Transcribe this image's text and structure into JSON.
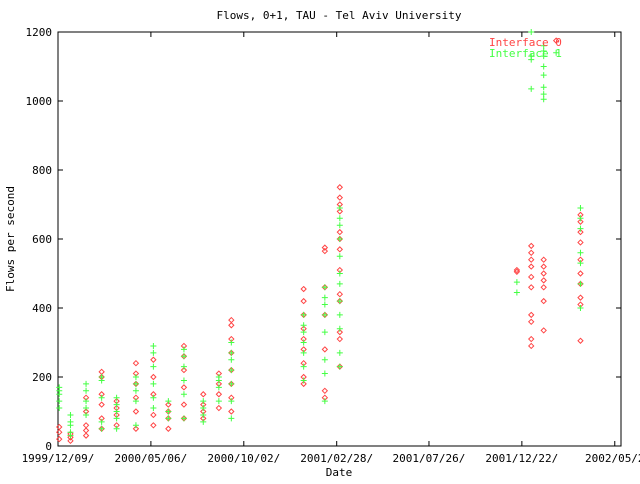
{
  "chart_data": {
    "type": "scatter",
    "title": "Flows, 0+1, TAU - Tel Aviv University",
    "xlabel": "Date",
    "ylabel": "Flows per second",
    "xlim": [
      "1999-12-09",
      "2002-05-30"
    ],
    "ylim": [
      0,
      1200
    ],
    "y_ticks": [
      0,
      200,
      400,
      600,
      800,
      1000,
      1200
    ],
    "x_ticks": [
      {
        "date": "1999-12-09",
        "label": "1999/12/09/"
      },
      {
        "date": "2000-05-06",
        "label": "2000/05/06/"
      },
      {
        "date": "2000-10-02",
        "label": "2000/10/02/"
      },
      {
        "date": "2001-02-28",
        "label": "2001/02/28/"
      },
      {
        "date": "2001-07-26",
        "label": "2001/07/26/"
      },
      {
        "date": "2001-12-22",
        "label": "2001/12/22/"
      },
      {
        "date": "2002-05-20",
        "label": "2002/05/2"
      }
    ],
    "legend_position": "top-right",
    "grid": false,
    "series": [
      {
        "name": "Interface 0",
        "color": "#ff4444",
        "marker": "diamond",
        "points": [
          [
            "1999-12-11",
            20
          ],
          [
            "1999-12-11",
            40
          ],
          [
            "1999-12-11",
            55
          ],
          [
            "1999-12-29",
            15
          ],
          [
            "1999-12-29",
            25
          ],
          [
            "1999-12-29",
            35
          ],
          [
            "2000-01-23",
            30
          ],
          [
            "2000-01-23",
            45
          ],
          [
            "2000-01-23",
            60
          ],
          [
            "2000-01-23",
            100
          ],
          [
            "2000-01-23",
            140
          ],
          [
            "2000-02-17",
            50
          ],
          [
            "2000-02-17",
            80
          ],
          [
            "2000-02-17",
            120
          ],
          [
            "2000-02-17",
            150
          ],
          [
            "2000-02-17",
            200
          ],
          [
            "2000-02-17",
            215
          ],
          [
            "2000-03-12",
            60
          ],
          [
            "2000-03-12",
            90
          ],
          [
            "2000-03-12",
            110
          ],
          [
            "2000-03-12",
            130
          ],
          [
            "2000-04-12",
            50
          ],
          [
            "2000-04-12",
            100
          ],
          [
            "2000-04-12",
            140
          ],
          [
            "2000-04-12",
            180
          ],
          [
            "2000-04-12",
            210
          ],
          [
            "2000-04-12",
            240
          ],
          [
            "2000-05-10",
            60
          ],
          [
            "2000-05-10",
            90
          ],
          [
            "2000-05-10",
            150
          ],
          [
            "2000-05-10",
            200
          ],
          [
            "2000-05-10",
            250
          ],
          [
            "2000-06-03",
            50
          ],
          [
            "2000-06-03",
            80
          ],
          [
            "2000-06-03",
            100
          ],
          [
            "2000-06-03",
            120
          ],
          [
            "2000-06-28",
            80
          ],
          [
            "2000-06-28",
            120
          ],
          [
            "2000-06-28",
            170
          ],
          [
            "2000-06-28",
            220
          ],
          [
            "2000-06-28",
            260
          ],
          [
            "2000-06-28",
            290
          ],
          [
            "2000-07-29",
            80
          ],
          [
            "2000-07-29",
            100
          ],
          [
            "2000-07-29",
            120
          ],
          [
            "2000-07-29",
            150
          ],
          [
            "2000-08-23",
            110
          ],
          [
            "2000-08-23",
            150
          ],
          [
            "2000-08-23",
            180
          ],
          [
            "2000-08-23",
            210
          ],
          [
            "2000-09-12",
            100
          ],
          [
            "2000-09-12",
            140
          ],
          [
            "2000-09-12",
            180
          ],
          [
            "2000-09-12",
            220
          ],
          [
            "2000-09-12",
            270
          ],
          [
            "2000-09-12",
            310
          ],
          [
            "2000-09-12",
            350
          ],
          [
            "2000-09-12",
            365
          ],
          [
            "2001-01-06",
            180
          ],
          [
            "2001-01-06",
            200
          ],
          [
            "2001-01-06",
            240
          ],
          [
            "2001-01-06",
            280
          ],
          [
            "2001-01-06",
            310
          ],
          [
            "2001-01-06",
            340
          ],
          [
            "2001-01-06",
            380
          ],
          [
            "2001-01-06",
            420
          ],
          [
            "2001-01-06",
            455
          ],
          [
            "2001-02-09",
            140
          ],
          [
            "2001-02-09",
            160
          ],
          [
            "2001-02-09",
            280
          ],
          [
            "2001-02-09",
            380
          ],
          [
            "2001-02-09",
            460
          ],
          [
            "2001-02-09",
            565
          ],
          [
            "2001-02-09",
            575
          ],
          [
            "2001-03-05",
            230
          ],
          [
            "2001-03-05",
            310
          ],
          [
            "2001-03-05",
            330
          ],
          [
            "2001-03-05",
            420
          ],
          [
            "2001-03-05",
            440
          ],
          [
            "2001-03-05",
            510
          ],
          [
            "2001-03-05",
            570
          ],
          [
            "2001-03-05",
            600
          ],
          [
            "2001-03-05",
            620
          ],
          [
            "2001-03-05",
            680
          ],
          [
            "2001-03-05",
            700
          ],
          [
            "2001-03-05",
            720
          ],
          [
            "2001-03-05",
            750
          ],
          [
            "2001-12-14",
            505
          ],
          [
            "2001-12-14",
            510
          ],
          [
            "2002-01-06",
            290
          ],
          [
            "2002-01-06",
            310
          ],
          [
            "2002-01-06",
            360
          ],
          [
            "2002-01-06",
            380
          ],
          [
            "2002-01-06",
            460
          ],
          [
            "2002-01-06",
            490
          ],
          [
            "2002-01-06",
            520
          ],
          [
            "2002-01-06",
            540
          ],
          [
            "2002-01-06",
            560
          ],
          [
            "2002-01-06",
            580
          ],
          [
            "2002-01-26",
            335
          ],
          [
            "2002-01-26",
            420
          ],
          [
            "2002-01-26",
            460
          ],
          [
            "2002-01-26",
            480
          ],
          [
            "2002-01-26",
            500
          ],
          [
            "2002-01-26",
            520
          ],
          [
            "2002-01-26",
            540
          ],
          [
            "2002-02-15",
            1175
          ],
          [
            "2002-03-26",
            305
          ],
          [
            "2002-03-26",
            410
          ],
          [
            "2002-03-26",
            430
          ],
          [
            "2002-03-26",
            470
          ],
          [
            "2002-03-26",
            500
          ],
          [
            "2002-03-26",
            540
          ],
          [
            "2002-03-26",
            590
          ],
          [
            "2002-03-26",
            620
          ],
          [
            "2002-03-26",
            650
          ],
          [
            "2002-03-26",
            670
          ]
        ]
      },
      {
        "name": "Interface 1",
        "color": "#44ff44",
        "marker": "plus",
        "points": [
          [
            "1999-12-11",
            110
          ],
          [
            "1999-12-11",
            130
          ],
          [
            "1999-12-11",
            150
          ],
          [
            "1999-12-11",
            160
          ],
          [
            "1999-12-11",
            170
          ],
          [
            "1999-12-29",
            30
          ],
          [
            "1999-12-29",
            40
          ],
          [
            "1999-12-29",
            60
          ],
          [
            "1999-12-29",
            70
          ],
          [
            "1999-12-29",
            90
          ],
          [
            "2000-01-23",
            90
          ],
          [
            "2000-01-23",
            110
          ],
          [
            "2000-01-23",
            130
          ],
          [
            "2000-01-23",
            160
          ],
          [
            "2000-01-23",
            180
          ],
          [
            "2000-02-17",
            50
          ],
          [
            "2000-02-17",
            70
          ],
          [
            "2000-02-17",
            140
          ],
          [
            "2000-02-17",
            190
          ],
          [
            "2000-02-17",
            200
          ],
          [
            "2000-03-12",
            50
          ],
          [
            "2000-03-12",
            80
          ],
          [
            "2000-03-12",
            100
          ],
          [
            "2000-03-12",
            120
          ],
          [
            "2000-03-12",
            140
          ],
          [
            "2000-04-12",
            60
          ],
          [
            "2000-04-12",
            130
          ],
          [
            "2000-04-12",
            160
          ],
          [
            "2000-04-12",
            180
          ],
          [
            "2000-04-12",
            200
          ],
          [
            "2000-05-10",
            110
          ],
          [
            "2000-05-10",
            140
          ],
          [
            "2000-05-10",
            180
          ],
          [
            "2000-05-10",
            230
          ],
          [
            "2000-05-10",
            270
          ],
          [
            "2000-05-10",
            290
          ],
          [
            "2000-06-03",
            80
          ],
          [
            "2000-06-03",
            100
          ],
          [
            "2000-06-03",
            130
          ],
          [
            "2000-06-28",
            80
          ],
          [
            "2000-06-28",
            150
          ],
          [
            "2000-06-28",
            190
          ],
          [
            "2000-06-28",
            230
          ],
          [
            "2000-06-28",
            260
          ],
          [
            "2000-06-28",
            280
          ],
          [
            "2000-07-29",
            70
          ],
          [
            "2000-07-29",
            90
          ],
          [
            "2000-07-29",
            110
          ],
          [
            "2000-07-29",
            130
          ],
          [
            "2000-08-23",
            130
          ],
          [
            "2000-08-23",
            170
          ],
          [
            "2000-08-23",
            190
          ],
          [
            "2000-08-23",
            200
          ],
          [
            "2000-09-12",
            80
          ],
          [
            "2000-09-12",
            130
          ],
          [
            "2000-09-12",
            180
          ],
          [
            "2000-09-12",
            220
          ],
          [
            "2000-09-12",
            250
          ],
          [
            "2000-09-12",
            270
          ],
          [
            "2000-09-12",
            300
          ],
          [
            "2001-01-06",
            190
          ],
          [
            "2001-01-06",
            230
          ],
          [
            "2001-01-06",
            270
          ],
          [
            "2001-01-06",
            300
          ],
          [
            "2001-01-06",
            330
          ],
          [
            "2001-01-06",
            350
          ],
          [
            "2001-01-06",
            380
          ],
          [
            "2001-02-09",
            130
          ],
          [
            "2001-02-09",
            210
          ],
          [
            "2001-02-09",
            250
          ],
          [
            "2001-02-09",
            330
          ],
          [
            "2001-02-09",
            380
          ],
          [
            "2001-02-09",
            410
          ],
          [
            "2001-02-09",
            430
          ],
          [
            "2001-02-09",
            460
          ],
          [
            "2001-03-05",
            230
          ],
          [
            "2001-03-05",
            270
          ],
          [
            "2001-03-05",
            340
          ],
          [
            "2001-03-05",
            380
          ],
          [
            "2001-03-05",
            420
          ],
          [
            "2001-03-05",
            470
          ],
          [
            "2001-03-05",
            500
          ],
          [
            "2001-03-05",
            550
          ],
          [
            "2001-03-05",
            600
          ],
          [
            "2001-03-05",
            640
          ],
          [
            "2001-03-05",
            660
          ],
          [
            "2001-03-05",
            690
          ],
          [
            "2001-12-14",
            445
          ],
          [
            "2001-12-14",
            475
          ],
          [
            "2002-01-06",
            1035
          ],
          [
            "2002-01-06",
            1120
          ],
          [
            "2002-01-06",
            1130
          ],
          [
            "2002-01-06",
            1200
          ],
          [
            "2002-01-26",
            1005
          ],
          [
            "2002-01-26",
            1020
          ],
          [
            "2002-01-26",
            1040
          ],
          [
            "2002-01-26",
            1075
          ],
          [
            "2002-01-26",
            1100
          ],
          [
            "2002-01-26",
            1130
          ],
          [
            "2002-01-26",
            1145
          ],
          [
            "2002-01-26",
            1160
          ],
          [
            "2002-02-15",
            1140
          ],
          [
            "2002-03-26",
            400
          ],
          [
            "2002-03-26",
            470
          ],
          [
            "2002-03-26",
            530
          ],
          [
            "2002-03-26",
            560
          ],
          [
            "2002-03-26",
            630
          ],
          [
            "2002-03-26",
            660
          ],
          [
            "2002-03-26",
            690
          ]
        ]
      }
    ]
  }
}
